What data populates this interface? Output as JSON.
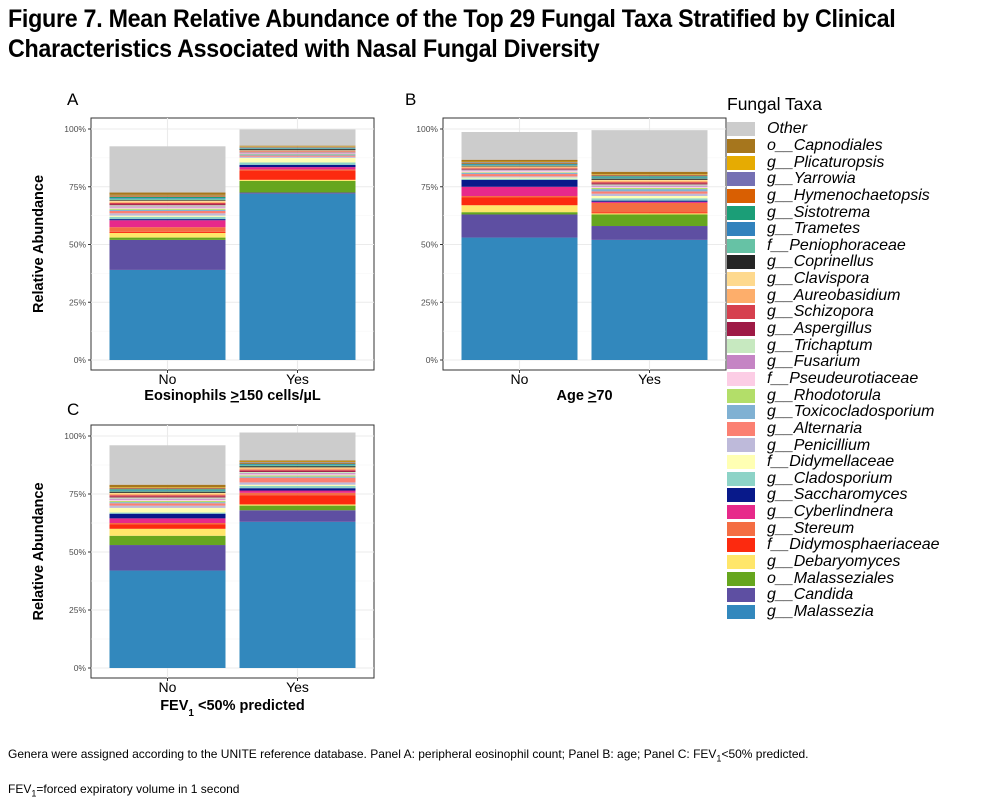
{
  "title": "Figure 7. Mean Relative Abundance of the Top 29 Fungal Taxa Stratified by Clinical Characteristics Associated with Nasal Fungal Diversity",
  "footnotes": {
    "line1_parts": [
      "Genera were assigned according to the UNITE reference database.  Panel A: peripheral eosinophil count; Panel B: age; Panel C: FEV",
      "1",
      "<50% predicted."
    ],
    "line2_parts": [
      "FEV",
      "1",
      "=forced expiratory volume in 1 second"
    ]
  },
  "legend": {
    "title": "Fungal Taxa",
    "items": [
      {
        "label": "Other",
        "color": "#cccccc"
      },
      {
        "label": "o__Capnodiales",
        "color": "#a6761d"
      },
      {
        "label": "g__Plicaturopsis",
        "color": "#e6ab02"
      },
      {
        "label": "g__Yarrowia",
        "color": "#7570b3"
      },
      {
        "label": "g__Hymenochaetopsis",
        "color": "#d95f02"
      },
      {
        "label": "g__Sistotrema",
        "color": "#1b9e77"
      },
      {
        "label": "g__Trametes",
        "color": "#3182bd"
      },
      {
        "label": "f__Peniophoraceae",
        "color": "#66c2a5"
      },
      {
        "label": "g__Coprinellus",
        "color": "#252525"
      },
      {
        "label": "g__Clavispora",
        "color": "#fed98e"
      },
      {
        "label": "g__Aureobasidium",
        "color": "#fdae6b"
      },
      {
        "label": "g__Schizopora",
        "color": "#d6404e"
      },
      {
        "label": "g__Aspergillus",
        "color": "#9e1a45"
      },
      {
        "label": "g__Trichaptum",
        "color": "#c7e9c0"
      },
      {
        "label": "g__Fusarium",
        "color": "#c584c4"
      },
      {
        "label": "f__Pseudeurotiaceae",
        "color": "#fccde5"
      },
      {
        "label": "g__Rhodotorula",
        "color": "#b3de69"
      },
      {
        "label": "g__Toxicocladosporium",
        "color": "#80b1d3"
      },
      {
        "label": "g__Alternaria",
        "color": "#fb8072"
      },
      {
        "label": "g__Penicillium",
        "color": "#bebada"
      },
      {
        "label": "f__Didymellaceae",
        "color": "#ffffb3"
      },
      {
        "label": "g__Cladosporium",
        "color": "#8dd3c7"
      },
      {
        "label": "g__Saccharomyces",
        "color": "#08198a"
      },
      {
        "label": "g__Cyberlindnera",
        "color": "#e7298a"
      },
      {
        "label": "g__Stereum",
        "color": "#f46d43"
      },
      {
        "label": "f__Didymosphaeriaceae",
        "color": "#fc2a0f"
      },
      {
        "label": "g__Debaryomyces",
        "color": "#ffe66a"
      },
      {
        "label": "o__Malasseziales",
        "color": "#66a61e"
      },
      {
        "label": "g__Candida",
        "color": "#5e4fa2"
      },
      {
        "label": "g__Malassezia",
        "color": "#3288bd"
      }
    ]
  },
  "chart_data": [
    {
      "panel": "A",
      "type": "bar",
      "stacked": true,
      "xlabel_parts": [
        "Eosinophils ",
        ">",
        "150 cells/µL"
      ],
      "ylabel": "Relative Abundance",
      "yticks": [
        "0%",
        "25%",
        "50%",
        "75%",
        "100%"
      ],
      "ylim": [
        0,
        1
      ],
      "categories": [
        "No",
        "Yes"
      ],
      "stacks": [
        {
          "category": "No",
          "segments": [
            [
              "g__Malassezia",
              0.39
            ],
            [
              "g__Candida",
              0.13
            ],
            [
              "o__Malasseziales",
              0.01
            ],
            [
              "g__Debaryomyces",
              0.02
            ],
            [
              "f__Didymosphaeriaceae",
              0.005
            ],
            [
              "g__Stereum",
              0.02
            ],
            [
              "g__Cyberlindnera",
              0.03
            ],
            [
              "g__Saccharomyces",
              0.005
            ],
            [
              "g__Cladosporium",
              0.01
            ],
            [
              "f__Didymellaceae",
              0.005
            ],
            [
              "g__Penicillium",
              0.01
            ],
            [
              "g__Alternaria",
              0.01
            ],
            [
              "g__Toxicocladosporium",
              0.005
            ],
            [
              "g__Rhodotorula",
              0.005
            ],
            [
              "f__Pseudeurotiaceae",
              0.005
            ],
            [
              "g__Fusarium",
              0.005
            ],
            [
              "g__Trichaptum",
              0.005
            ],
            [
              "g__Aspergillus",
              0.005
            ],
            [
              "g__Schizopora",
              0.005
            ],
            [
              "g__Aureobasidium",
              0.005
            ],
            [
              "g__Clavispora",
              0.005
            ],
            [
              "g__Coprinellus",
              0.003
            ],
            [
              "f__Peniophoraceae",
              0.005
            ],
            [
              "g__Trametes",
              0.003
            ],
            [
              "g__Sistotrema",
              0.005
            ],
            [
              "g__Hymenochaetopsis",
              0.003
            ],
            [
              "g__Yarrowia",
              0.003
            ],
            [
              "g__Plicaturopsis",
              0.003
            ],
            [
              "o__Capnodiales",
              0.01
            ],
            [
              "Other",
              0.2
            ]
          ]
        },
        {
          "category": "Yes",
          "segments": [
            [
              "g__Malassezia",
              0.72
            ],
            [
              "g__Candida",
              0.005
            ],
            [
              "o__Malasseziales",
              0.05
            ],
            [
              "g__Debaryomyces",
              0.005
            ],
            [
              "f__Didymosphaeriaceae",
              0.04
            ],
            [
              "g__Stereum",
              0.005
            ],
            [
              "g__Cyberlindnera",
              0.01
            ],
            [
              "g__Saccharomyces",
              0.01
            ],
            [
              "g__Cladosporium",
              0.01
            ],
            [
              "f__Didymellaceae",
              0.02
            ],
            [
              "g__Penicillium",
              0.005
            ],
            [
              "g__Alternaria",
              0.005
            ],
            [
              "g__Toxicocladosporium",
              0.005
            ],
            [
              "g__Rhodotorula",
              0.002
            ],
            [
              "f__Pseudeurotiaceae",
              0.002
            ],
            [
              "g__Fusarium",
              0.003
            ],
            [
              "g__Trichaptum",
              0.002
            ],
            [
              "g__Aspergillus",
              0.002
            ],
            [
              "g__Schizopora",
              0.002
            ],
            [
              "g__Aureobasidium",
              0.003
            ],
            [
              "g__Clavispora",
              0.002
            ],
            [
              "g__Coprinellus",
              0.005
            ],
            [
              "f__Peniophoraceae",
              0.002
            ],
            [
              "g__Trametes",
              0.002
            ],
            [
              "g__Sistotrema",
              0.002
            ],
            [
              "g__Hymenochaetopsis",
              0.002
            ],
            [
              "g__Yarrowia",
              0.002
            ],
            [
              "g__Plicaturopsis",
              0.002
            ],
            [
              "o__Capnodiales",
              0.003
            ],
            [
              "Other",
              0.07
            ]
          ]
        }
      ]
    },
    {
      "panel": "B",
      "type": "bar",
      "stacked": true,
      "xlabel_parts": [
        "Age ",
        ">",
        "70"
      ],
      "ylabel": "",
      "yticks": [
        "0%",
        "25%",
        "50%",
        "75%",
        "100%"
      ],
      "ylim": [
        0,
        1
      ],
      "categories": [
        "No",
        "Yes"
      ],
      "stacks": [
        {
          "category": "No",
          "segments": [
            [
              "g__Malassezia",
              0.53
            ],
            [
              "g__Candida",
              0.1
            ],
            [
              "o__Malasseziales",
              0.01
            ],
            [
              "g__Debaryomyces",
              0.03
            ],
            [
              "f__Didymosphaeriaceae",
              0.035
            ],
            [
              "g__Stereum",
              0.005
            ],
            [
              "g__Cyberlindnera",
              0.04
            ],
            [
              "g__Saccharomyces",
              0.03
            ],
            [
              "g__Cladosporium",
              0.005
            ],
            [
              "f__Didymellaceae",
              0.005
            ],
            [
              "g__Penicillium",
              0.005
            ],
            [
              "g__Alternaria",
              0.01
            ],
            [
              "g__Toxicocladosporium",
              0.005
            ],
            [
              "g__Rhodotorula",
              0.003
            ],
            [
              "f__Pseudeurotiaceae",
              0.005
            ],
            [
              "g__Fusarium",
              0.003
            ],
            [
              "g__Trichaptum",
              0.003
            ],
            [
              "g__Aspergillus",
              0.003
            ],
            [
              "g__Schizopora",
              0.003
            ],
            [
              "g__Aureobasidium",
              0.005
            ],
            [
              "g__Clavispora",
              0.003
            ],
            [
              "g__Coprinellus",
              0.003
            ],
            [
              "f__Peniophoraceae",
              0.003
            ],
            [
              "g__Trametes",
              0.003
            ],
            [
              "g__Sistotrema",
              0.003
            ],
            [
              "g__Hymenochaetopsis",
              0.003
            ],
            [
              "g__Yarrowia",
              0.003
            ],
            [
              "g__Plicaturopsis",
              0.003
            ],
            [
              "o__Capnodiales",
              0.008
            ],
            [
              "Other",
              0.12
            ]
          ]
        },
        {
          "category": "Yes",
          "segments": [
            [
              "g__Malassezia",
              0.52
            ],
            [
              "g__Candida",
              0.06
            ],
            [
              "o__Malasseziales",
              0.05
            ],
            [
              "g__Debaryomyces",
              0.005
            ],
            [
              "f__Didymosphaeriaceae",
              0.005
            ],
            [
              "g__Stereum",
              0.04
            ],
            [
              "g__Cyberlindnera",
              0.005
            ],
            [
              "g__Saccharomyces",
              0.005
            ],
            [
              "g__Cladosporium",
              0.01
            ],
            [
              "f__Didymellaceae",
              0.01
            ],
            [
              "g__Penicillium",
              0.01
            ],
            [
              "g__Alternaria",
              0.01
            ],
            [
              "g__Toxicocladosporium",
              0.01
            ],
            [
              "g__Rhodotorula",
              0.005
            ],
            [
              "f__Pseudeurotiaceae",
              0.005
            ],
            [
              "g__Fusarium",
              0.005
            ],
            [
              "g__Trichaptum",
              0.005
            ],
            [
              "g__Aspergillus",
              0.005
            ],
            [
              "g__Schizopora",
              0.005
            ],
            [
              "g__Aureobasidium",
              0.005
            ],
            [
              "g__Clavispora",
              0.005
            ],
            [
              "g__Coprinellus",
              0.005
            ],
            [
              "f__Peniophoraceae",
              0.005
            ],
            [
              "g__Trametes",
              0.003
            ],
            [
              "g__Sistotrema",
              0.003
            ],
            [
              "g__Hymenochaetopsis",
              0.003
            ],
            [
              "g__Yarrowia",
              0.003
            ],
            [
              "g__Plicaturopsis",
              0.003
            ],
            [
              "o__Capnodiales",
              0.01
            ],
            [
              "Other",
              0.18
            ]
          ]
        }
      ]
    },
    {
      "panel": "C",
      "type": "bar",
      "stacked": true,
      "xlabel_parts": [
        "FEV",
        "1",
        " <50% predicted"
      ],
      "ylabel": "Relative Abundance",
      "yticks": [
        "0%",
        "25%",
        "50%",
        "75%",
        "100%"
      ],
      "ylim": [
        0,
        1
      ],
      "categories": [
        "No",
        "Yes"
      ],
      "stacks": [
        {
          "category": "No",
          "segments": [
            [
              "g__Malassezia",
              0.42
            ],
            [
              "g__Candida",
              0.11
            ],
            [
              "o__Malasseziales",
              0.04
            ],
            [
              "g__Debaryomyces",
              0.03
            ],
            [
              "f__Didymosphaeriaceae",
              0.02
            ],
            [
              "g__Stereum",
              0.005
            ],
            [
              "g__Cyberlindnera",
              0.02
            ],
            [
              "g__Saccharomyces",
              0.02
            ],
            [
              "g__Cladosporium",
              0.005
            ],
            [
              "f__Didymellaceae",
              0.02
            ],
            [
              "g__Penicillium",
              0.01
            ],
            [
              "g__Alternaria",
              0.01
            ],
            [
              "g__Toxicocladosporium",
              0.005
            ],
            [
              "g__Rhodotorula",
              0.005
            ],
            [
              "f__Pseudeurotiaceae",
              0.005
            ],
            [
              "g__Fusarium",
              0.005
            ],
            [
              "g__Trichaptum",
              0.005
            ],
            [
              "g__Aspergillus",
              0.005
            ],
            [
              "g__Schizopora",
              0.005
            ],
            [
              "g__Aureobasidium",
              0.005
            ],
            [
              "g__Clavispora",
              0.005
            ],
            [
              "g__Coprinellus",
              0.005
            ],
            [
              "f__Peniophoraceae",
              0.005
            ],
            [
              "g__Trametes",
              0.003
            ],
            [
              "g__Sistotrema",
              0.003
            ],
            [
              "g__Hymenochaetopsis",
              0.003
            ],
            [
              "g__Yarrowia",
              0.003
            ],
            [
              "g__Plicaturopsis",
              0.003
            ],
            [
              "o__Capnodiales",
              0.01
            ],
            [
              "Other",
              0.17
            ]
          ]
        },
        {
          "category": "Yes",
          "segments": [
            [
              "g__Malassezia",
              0.63
            ],
            [
              "g__Candida",
              0.05
            ],
            [
              "o__Malasseziales",
              0.02
            ],
            [
              "g__Debaryomyces",
              0.005
            ],
            [
              "f__Didymosphaeriaceae",
              0.04
            ],
            [
              "g__Stereum",
              0.01
            ],
            [
              "g__Cyberlindnera",
              0.01
            ],
            [
              "g__Saccharomyces",
              0.01
            ],
            [
              "g__Cladosporium",
              0.01
            ],
            [
              "f__Didymellaceae",
              0.005
            ],
            [
              "g__Penicillium",
              0.01
            ],
            [
              "g__Alternaria",
              0.02
            ],
            [
              "g__Toxicocladosporium",
              0.005
            ],
            [
              "g__Rhodotorula",
              0.005
            ],
            [
              "f__Pseudeurotiaceae",
              0.005
            ],
            [
              "g__Fusarium",
              0.005
            ],
            [
              "g__Trichaptum",
              0.005
            ],
            [
              "g__Aspergillus",
              0.005
            ],
            [
              "g__Schizopora",
              0.005
            ],
            [
              "g__Aureobasidium",
              0.005
            ],
            [
              "g__Clavispora",
              0.005
            ],
            [
              "g__Coprinellus",
              0.005
            ],
            [
              "f__Peniophoraceae",
              0.005
            ],
            [
              "g__Trametes",
              0.003
            ],
            [
              "g__Sistotrema",
              0.003
            ],
            [
              "g__Hymenochaetopsis",
              0.003
            ],
            [
              "g__Yarrowia",
              0.003
            ],
            [
              "g__Plicaturopsis",
              0.003
            ],
            [
              "o__Capnodiales",
              0.005
            ],
            [
              "Other",
              0.12
            ]
          ]
        }
      ]
    }
  ]
}
